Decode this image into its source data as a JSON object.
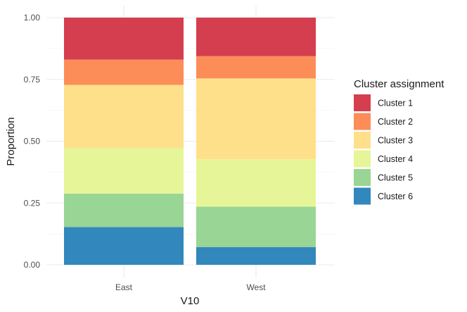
{
  "chart_data": {
    "type": "bar",
    "stacked": true,
    "categories": [
      "East",
      "West"
    ],
    "xlabel": "V10",
    "ylabel": "Proportion",
    "ylim": [
      0,
      1
    ],
    "yticks": [
      "0.00",
      "0.25",
      "0.50",
      "0.75",
      "1.00"
    ],
    "grid": true,
    "legend": {
      "title": "Cluster assignment",
      "position": "right"
    },
    "series": [
      {
        "name": "Cluster 6",
        "color": "#3288BD",
        "values": [
          0.153,
          0.072
        ]
      },
      {
        "name": "Cluster 5",
        "color": "#99D594",
        "values": [
          0.135,
          0.163
        ]
      },
      {
        "name": "Cluster 4",
        "color": "#E6F598",
        "values": [
          0.185,
          0.192
        ]
      },
      {
        "name": "Cluster 3",
        "color": "#FEE08B",
        "values": [
          0.255,
          0.327
        ]
      },
      {
        "name": "Cluster 2",
        "color": "#FC8D59",
        "values": [
          0.102,
          0.09
        ]
      },
      {
        "name": "Cluster 1",
        "color": "#D53E4F",
        "values": [
          0.17,
          0.156
        ]
      }
    ]
  }
}
